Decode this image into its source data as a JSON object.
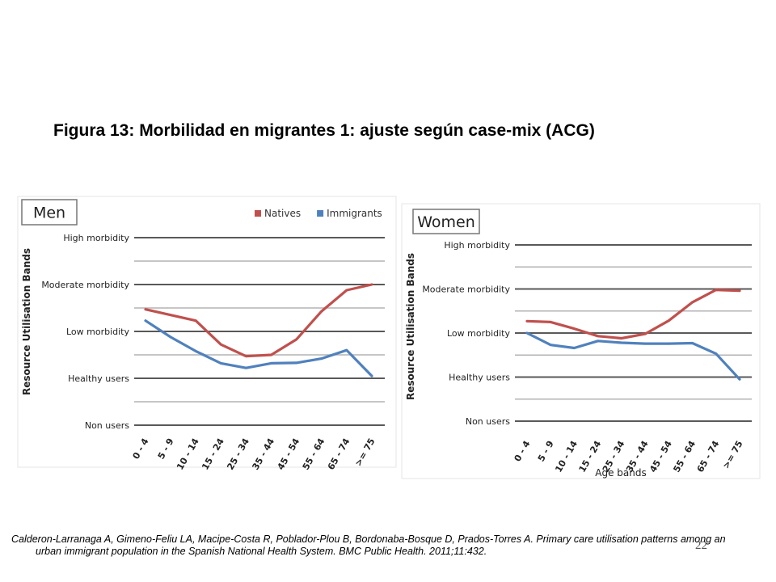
{
  "slide": {
    "title": "Figura 13: Morbilidad en migrantes 1: ajuste según case-mix (ACG)",
    "citation_line1": "Calderon-Larranaga A, Gimeno-Feliu LA, Macipe-Costa R, Poblador-Plou B, Bordonaba-Bosque D, Prados-Torres A. Primary care utilisation patterns among an",
    "citation_line2": "urban immigrant population in the Spanish National Health System. BMC Public Health. 2011;11:432.",
    "page_number": "22"
  },
  "colors": {
    "natives": "#c0504d",
    "immigrants": "#4f81bd",
    "gridline": "#595959",
    "gridline_light": "#b3b3b3"
  },
  "chart_data": [
    {
      "type": "line",
      "title": "Men",
      "ylabel": "Resource Utilisation Bands",
      "xlabel": "",
      "legend_position": "top-right",
      "categories": [
        "0 - 4",
        "5 - 9",
        "10 - 14",
        "15 - 24",
        "25 - 34",
        "35 - 44",
        "45 - 54",
        "55 - 64",
        "65 - 74",
        ">= 75"
      ],
      "y_tick_labels": [
        "Non users",
        "Healthy users",
        "Low morbidity",
        "Moderate morbidity",
        "High morbidity"
      ],
      "ylim": [
        0,
        4
      ],
      "series": [
        {
          "name": "Natives",
          "color": "#c0504d",
          "values": [
            2.47,
            2.35,
            2.23,
            1.72,
            1.47,
            1.5,
            1.83,
            2.43,
            2.88,
            3.0
          ]
        },
        {
          "name": "Immigrants",
          "color": "#4f81bd",
          "values": [
            2.23,
            1.88,
            1.58,
            1.32,
            1.22,
            1.32,
            1.33,
            1.42,
            1.6,
            1.05
          ]
        }
      ]
    },
    {
      "type": "line",
      "title": "Women",
      "ylabel": "Resource Utilisation Bands",
      "xlabel": "Age bands",
      "legend_position": "",
      "categories": [
        "0 - 4",
        "5 - 9",
        "10 - 14",
        "15 - 24",
        "25 - 34",
        "35 - 44",
        "45 - 54",
        "55 - 64",
        "65 - 74",
        ">= 75"
      ],
      "y_tick_labels": [
        "Non users",
        "Healthy users",
        "Low morbidity",
        "Moderate morbidity",
        "High morbidity"
      ],
      "ylim": [
        0,
        4
      ],
      "series": [
        {
          "name": "Natives",
          "color": "#c0504d",
          "values": [
            2.27,
            2.25,
            2.1,
            1.93,
            1.88,
            1.98,
            2.28,
            2.7,
            2.98,
            2.96
          ]
        },
        {
          "name": "Immigrants",
          "color": "#4f81bd",
          "values": [
            2.0,
            1.73,
            1.66,
            1.82,
            1.78,
            1.76,
            1.76,
            1.77,
            1.53,
            0.95
          ]
        }
      ]
    }
  ]
}
